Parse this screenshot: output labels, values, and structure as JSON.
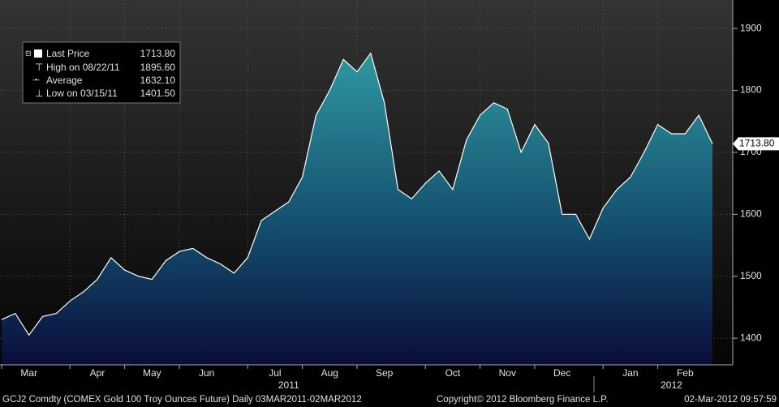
{
  "chart_data": {
    "type": "area",
    "categories": [
      "Mar",
      null,
      null,
      null,
      null,
      "Apr",
      null,
      null,
      null,
      "May",
      null,
      null,
      null,
      "Jun",
      null,
      null,
      null,
      null,
      "Jul",
      null,
      null,
      null,
      "Aug",
      null,
      null,
      null,
      "Sep",
      null,
      null,
      null,
      null,
      "Oct",
      null,
      null,
      null,
      "Nov",
      null,
      null,
      null,
      "Dec",
      null,
      null,
      null,
      null,
      "Jan",
      null,
      null,
      null,
      "Feb",
      null,
      null,
      null,
      null
    ],
    "values": [
      1430,
      1440,
      1405,
      1435,
      1440,
      1460,
      1475,
      1495,
      1530,
      1510,
      1500,
      1495,
      1525,
      1540,
      1545,
      1530,
      1520,
      1505,
      1530,
      1590,
      1605,
      1620,
      1660,
      1760,
      1800,
      1850,
      1830,
      1860,
      1780,
      1640,
      1625,
      1650,
      1670,
      1640,
      1720,
      1760,
      1780,
      1770,
      1700,
      1745,
      1715,
      1600,
      1600,
      1560,
      1610,
      1640,
      1660,
      1700,
      1745,
      1730,
      1730,
      1760,
      1713.8
    ],
    "years": [
      {
        "label": "2011",
        "index": 20
      },
      {
        "label": "2012",
        "index": 48
      }
    ],
    "ylim": [
      1357,
      1946
    ],
    "yticks": [
      1400,
      1500,
      1600,
      1700,
      1800,
      1900
    ],
    "grid": true,
    "color": "#ffffff",
    "legend": [
      {
        "label": "Last Price",
        "value": "1713.80"
      },
      {
        "label": "High on 08/22/11",
        "value": "1895.60"
      },
      {
        "label": "Average",
        "value": "1632.10"
      },
      {
        "label": "Low on 03/15/11",
        "value": "1401.50"
      }
    ],
    "footer": {
      "left": "GCJ2 Comdty (COMEX Gold 100 Troy Ounces Future)  Daily 03MAR2011-02MAR2012",
      "center": "Copyright© 2012 Bloomberg Finance L.P.",
      "right": "02-Mar-2012 09:57:59"
    }
  }
}
